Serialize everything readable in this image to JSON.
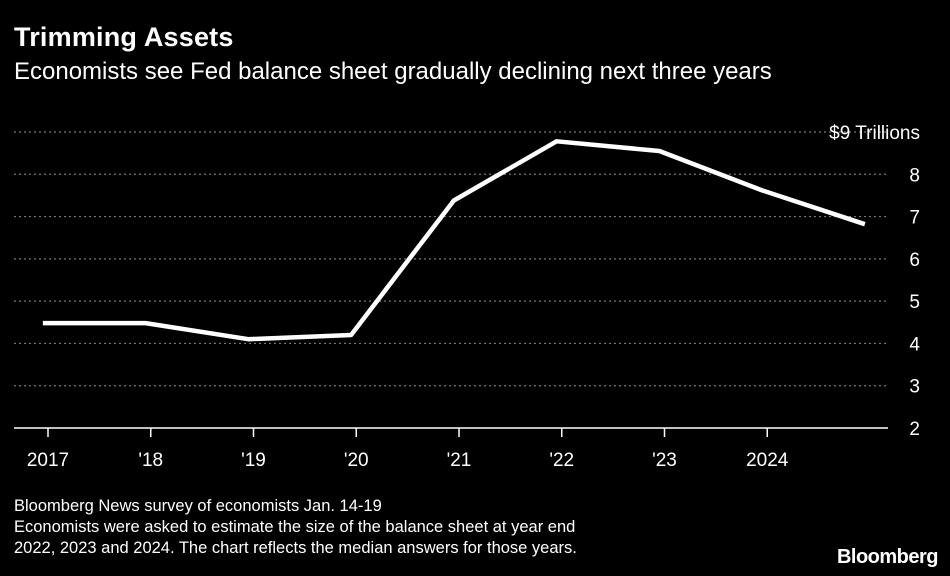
{
  "header": {
    "title": "Trimming Assets",
    "subtitle": "Economists see Fed balance sheet gradually declining next three years"
  },
  "footer": {
    "source": "Bloomberg News survey of economists Jan. 14-19",
    "note_line1": "Economists were asked to estimate the size of the balance sheet at year end",
    "note_line2": "2022, 2023 and 2024. The chart reflects the median answers for those years."
  },
  "brand": "Bloomberg",
  "colors": {
    "background": "#000000",
    "line": "#ffffff",
    "grid": "#777777",
    "text": "#ffffff"
  },
  "chart_data": {
    "type": "line",
    "title": "Trimming Assets",
    "subtitle": "Economists see Fed balance sheet gradually declining next three years",
    "xlabel": "",
    "ylabel": "",
    "x_ticks": [
      {
        "value": 2017,
        "label": "2017"
      },
      {
        "value": 2018,
        "label": "'18"
      },
      {
        "value": 2019,
        "label": "'19"
      },
      {
        "value": 2020,
        "label": "'20"
      },
      {
        "value": 2021,
        "label": "'21"
      },
      {
        "value": 2022,
        "label": "'22"
      },
      {
        "value": 2023,
        "label": "'23"
      },
      {
        "value": 2024,
        "label": "2024"
      }
    ],
    "y_ticks": [
      {
        "value": 9,
        "label": "$9 Trillions"
      },
      {
        "value": 8,
        "label": "8"
      },
      {
        "value": 7,
        "label": "7"
      },
      {
        "value": 6,
        "label": "6"
      },
      {
        "value": 5,
        "label": "5"
      },
      {
        "value": 4,
        "label": "4"
      },
      {
        "value": 3,
        "label": "3"
      },
      {
        "value": 2,
        "label": "2"
      }
    ],
    "xlim": [
      2016.9,
      2025.2
    ],
    "ylim": [
      2,
      9
    ],
    "y_axis_side": "right",
    "grid": "horizontal dotted",
    "series": [
      {
        "x": [
          2016.95,
          2017.95,
          2018.95,
          2019.95,
          2020.95,
          2021.95,
          2022.95,
          2023.95,
          2024.95
        ],
        "values": [
          4.48,
          4.48,
          4.1,
          4.2,
          7.38,
          8.78,
          8.55,
          7.62,
          6.82
        ]
      }
    ]
  }
}
